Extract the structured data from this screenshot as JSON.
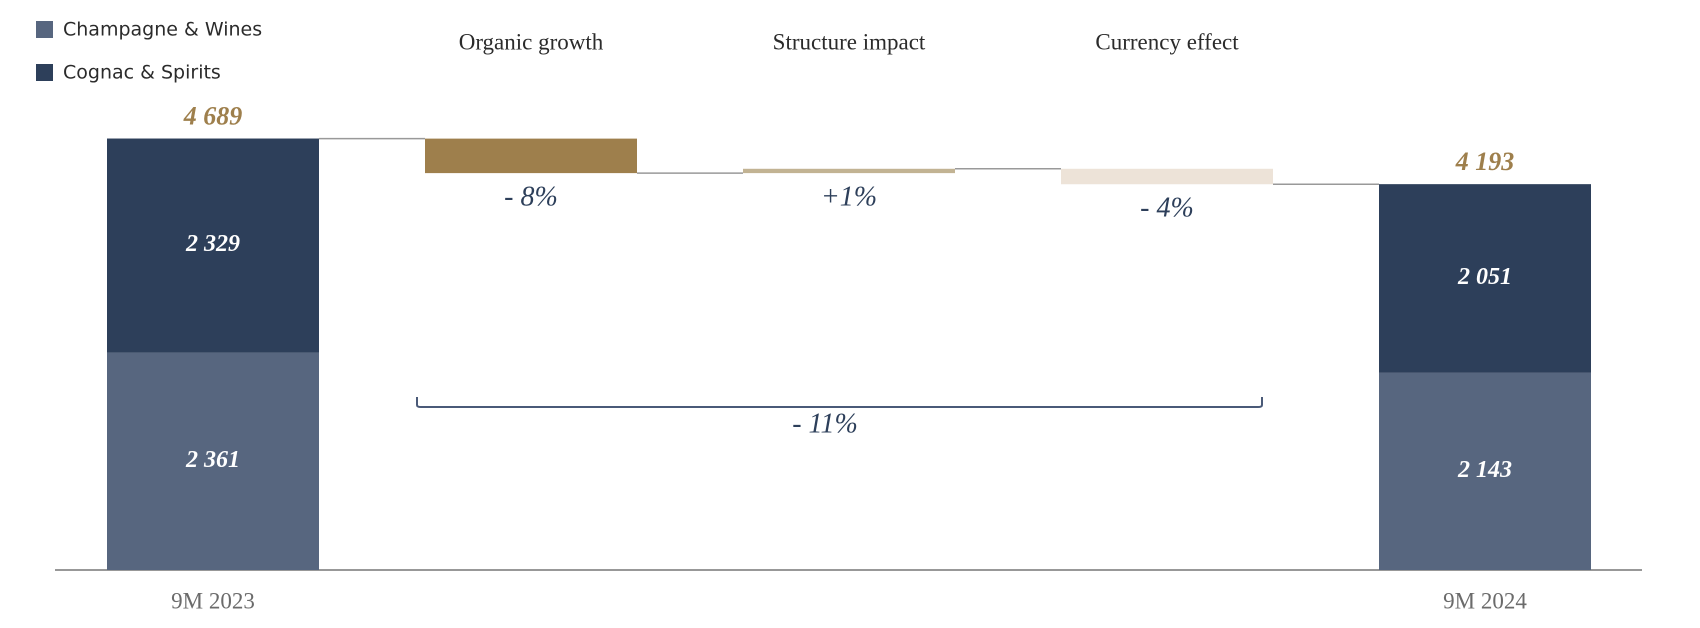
{
  "chart_data": {
    "type": "waterfall",
    "categories": [
      "9M 2023",
      "Organic growth",
      "Structure impact",
      "Currency effect",
      "9M 2024"
    ],
    "series": [
      {
        "name": "Champagne & Wines",
        "color": "#57667f",
        "values": [
          2361,
          null,
          null,
          null,
          2143
        ],
        "value_labels": [
          "2 361",
          null,
          null,
          null,
          "2 143"
        ]
      },
      {
        "name": "Cognac & Spirits",
        "color": "#2d3f5a",
        "values": [
          2329,
          null,
          null,
          null,
          2051
        ],
        "value_labels": [
          "2 329",
          null,
          null,
          null,
          "2 051"
        ]
      }
    ],
    "totals": [
      4689,
      null,
      null,
      null,
      4193
    ],
    "total_labels": [
      "4 689",
      null,
      null,
      null,
      "4 193"
    ],
    "changes": [
      null,
      -375,
      47,
      -168,
      null
    ],
    "change_labels": [
      null,
      "- 8%",
      "+1%",
      "- 4%",
      null
    ],
    "change_colors": [
      null,
      "#9e7f4c",
      "#c2b393",
      "#ede3d8",
      null
    ],
    "annotation": "- 11%",
    "ylim": [
      0,
      5000
    ],
    "legend": "top-left"
  }
}
